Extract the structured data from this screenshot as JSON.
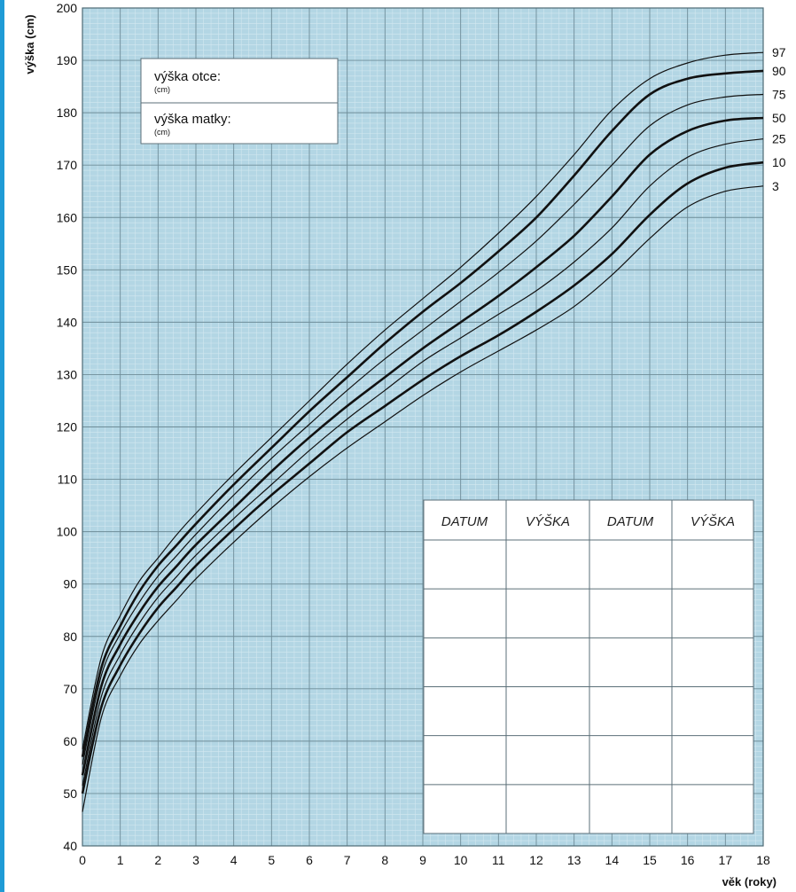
{
  "parents_box": {
    "father_label": "výška otce:",
    "father_unit": "(cm)",
    "mother_label": "výška matky:",
    "mother_unit": "(cm)"
  },
  "record_table": {
    "headers": [
      "DATUM",
      "VÝŠKA",
      "DATUM",
      "VÝŠKA"
    ],
    "empty_rows": 6
  },
  "colors": {
    "plot_background": "#b3d6e4",
    "grid_minor": "#d3e8f0",
    "grid_major": "#6d8c98",
    "curve": "#111111",
    "left_edge_bar": "#1f9bd6"
  },
  "chart_data": {
    "type": "line",
    "xlabel": "věk (roky)",
    "ylabel": "výška (cm)",
    "xlim": [
      0,
      18
    ],
    "ylim": [
      40,
      200
    ],
    "x_ticks": [
      0,
      1,
      2,
      3,
      4,
      5,
      6,
      7,
      8,
      9,
      10,
      11,
      12,
      13,
      14,
      15,
      16,
      17,
      18
    ],
    "y_ticks": [
      40,
      50,
      60,
      70,
      80,
      90,
      100,
      110,
      120,
      130,
      140,
      150,
      160,
      170,
      180,
      190,
      200
    ],
    "grid": true,
    "x": [
      0,
      0.5,
      1,
      1.5,
      2,
      2.5,
      3,
      4,
      5,
      6,
      7,
      8,
      9,
      10,
      11,
      12,
      13,
      14,
      15,
      16,
      17,
      18
    ],
    "series": [
      {
        "name": "97",
        "bold": false,
        "values": [
          58.5,
          76,
          84,
          90.5,
          95,
          99.5,
          103.5,
          111,
          118,
          125,
          132,
          138.5,
          144.5,
          150.5,
          157,
          164,
          172,
          180.5,
          186.5,
          189.5,
          191,
          191.5
        ]
      },
      {
        "name": "90",
        "bold": true,
        "values": [
          57,
          74,
          82,
          88.5,
          93.5,
          97.5,
          101.5,
          109,
          116,
          123,
          129.5,
          136,
          142,
          147.5,
          153.5,
          160,
          168,
          176.5,
          183.5,
          186.5,
          187.5,
          188
        ]
      },
      {
        "name": "75",
        "bold": false,
        "values": [
          55.5,
          72.5,
          80.5,
          86.5,
          91.5,
          95.5,
          99.5,
          107,
          114,
          120.5,
          127,
          133,
          138.5,
          144,
          149.5,
          155.5,
          162.5,
          170,
          177.5,
          181.5,
          183,
          183.5
        ]
      },
      {
        "name": "50",
        "bold": true,
        "values": [
          53.5,
          70.5,
          78.5,
          84.5,
          89.5,
          93.5,
          97.5,
          104.5,
          111.5,
          118,
          124,
          129.5,
          135,
          140,
          145,
          150.5,
          156.5,
          164,
          172,
          176.5,
          178.5,
          179
        ]
      },
      {
        "name": "25",
        "bold": false,
        "values": [
          51.5,
          68.5,
          76.5,
          82.5,
          87.5,
          91.5,
          95.5,
          102.5,
          109,
          115.5,
          121.5,
          127,
          132.5,
          137,
          141.5,
          146,
          151.5,
          158,
          166,
          171.5,
          174,
          175
        ]
      },
      {
        "name": "10",
        "bold": true,
        "values": [
          50,
          66.5,
          74.5,
          80.5,
          85.5,
          89.5,
          93.5,
          100.5,
          107,
          113,
          119,
          124,
          129,
          133.5,
          137.5,
          142,
          147,
          153,
          160.5,
          166.5,
          169.5,
          170.5
        ]
      },
      {
        "name": "3",
        "bold": false,
        "values": [
          46.5,
          64.5,
          72.5,
          78.5,
          83,
          87,
          91,
          98,
          104.5,
          110.5,
          116,
          121,
          126,
          130.5,
          134.5,
          138.5,
          143,
          149,
          156,
          162,
          165,
          166
        ]
      }
    ]
  }
}
